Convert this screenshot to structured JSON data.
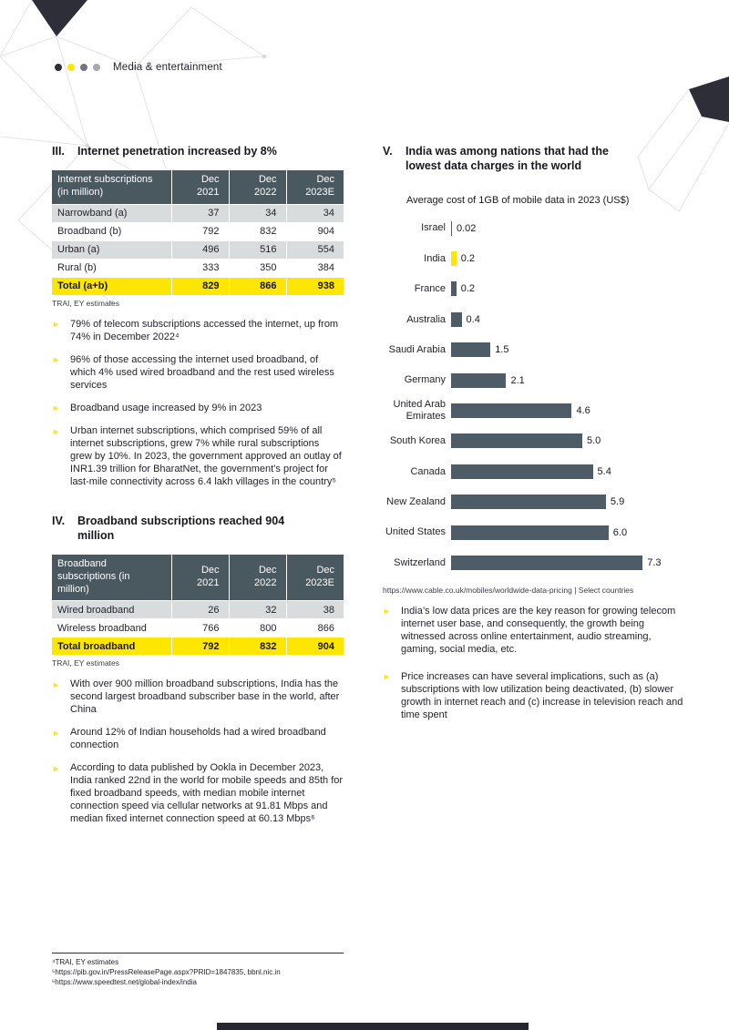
{
  "header": {
    "label": "Media & entertainment",
    "dot_colors": [
      "#2e2e38",
      "#ffe600",
      "#747480",
      "#a8a8b2"
    ]
  },
  "icons": {
    "bullet_arrow": "►"
  },
  "section3": {
    "number": "III.",
    "title": "Internet penetration increased by 8%",
    "table": {
      "col_headers": [
        "Internet subscriptions\n(in million)",
        "Dec\n2021",
        "Dec\n2022",
        "Dec\n2023E"
      ],
      "rows": [
        {
          "label": "Narrowband (a)",
          "v1": "37",
          "v2": "34",
          "v3": "34"
        },
        {
          "label": "Broadband (b)",
          "v1": "792",
          "v2": "832",
          "v3": "904"
        },
        {
          "label": "Urban (a)",
          "v1": "496",
          "v2": "516",
          "v3": "554"
        },
        {
          "label": "Rural (b)",
          "v1": "333",
          "v2": "350",
          "v3": "384"
        },
        {
          "label": "Total (a+b)",
          "v1": "829",
          "v2": "866",
          "v3": "938"
        }
      ],
      "source": "TRAI, EY estimates"
    },
    "bullets": [
      "79% of telecom subscriptions accessed the internet, up from 74% in December 2022⁴",
      "96% of those accessing the internet used broadband, of which 4% used wired broadband and the rest used wireless services",
      "Broadband usage increased by 9% in 2023",
      "Urban internet subscriptions, which comprised 59% of all internet subscriptions, grew 7% while rural subscriptions grew by 10%. In 2023, the government approved an outlay of INR1.39 trillion for BharatNet, the government’s project for last-mile connectivity across 6.4 lakh villages in the country⁵"
    ]
  },
  "section4": {
    "number": "IV.",
    "title": "Broadband subscriptions reached 904 million",
    "table": {
      "col_headers": [
        "Broadband\nsubscriptions (in million)",
        "Dec\n2021",
        "Dec\n2022",
        "Dec\n2023E"
      ],
      "rows": [
        {
          "label": "Wired broadband",
          "v1": "26",
          "v2": "32",
          "v3": "38"
        },
        {
          "label": "Wireless broadband",
          "v1": "766",
          "v2": "800",
          "v3": "866"
        },
        {
          "label": "Total broadband",
          "v1": "792",
          "v2": "832",
          "v3": "904"
        }
      ],
      "source": "TRAI, EY estimates"
    },
    "bullets": [
      "With over 900 million broadband subscriptions, India has  the second largest broadband subscriber base in the world, after China",
      "Around 12% of Indian households had a wired broadband connection",
      "According to data published by Ookla in December 2023, India ranked 22nd in the world for mobile speeds and 85th for fixed broadband speeds, with median mobile internet connection speed via cellular networks at 91.81 Mbps and median fixed internet connection speed at 60.13 Mbps⁶"
    ]
  },
  "section5": {
    "number": "V.",
    "title": "India was among nations that had the lowest data charges in the world",
    "bullets": [
      "India’s low data prices are the key reason for growing telecom internet user base, and consequently, the growth being witnessed across online entertainment, audio streaming, gaming, social media, etc.",
      "Price increases can have several implications, such as (a) subscriptions with low utilization being deactivated, (b) slower growth in internet reach and (c) increase in television reach and time spent"
    ]
  },
  "chart_data": {
    "type": "bar",
    "orientation": "horizontal",
    "title": "Average cost of 1GB of mobile data in 2023 (US$)",
    "categories": [
      "Israel",
      "India",
      "France",
      "Australia",
      "Saudi Arabia",
      "Germany",
      "United Arab Emirates",
      "South Korea",
      "Canada",
      "New Zealand",
      "United States",
      "Switzerland"
    ],
    "values": [
      0.02,
      0.2,
      0.2,
      0.4,
      1.5,
      2.1,
      4.6,
      5.0,
      5.4,
      5.9,
      6.0,
      7.3
    ],
    "value_labels": [
      "0.02",
      "0.2",
      "0.2",
      "0.4",
      "1.5",
      "2.1",
      "4.6",
      "5.0",
      "5.4",
      "5.9",
      "6.0",
      "7.3"
    ],
    "highlight_index": 1,
    "bar_color": "#4d5c66",
    "highlight_color": "#ffe600",
    "xlim": [
      0,
      7.5
    ],
    "grid": false,
    "legend": "none",
    "source": "https://www.cable.co.uk/mobiles/worldwide-data-pricing | Select countries"
  },
  "footnotes": {
    "line1": "⁴TRAI, EY estimates",
    "line2": "⁵https://pib.gov.in/PressReleasePage.aspx?PRID=1847835, bbnl.nic.in",
    "line3": "⁶https://www.speedtest.net/global-index/india"
  }
}
